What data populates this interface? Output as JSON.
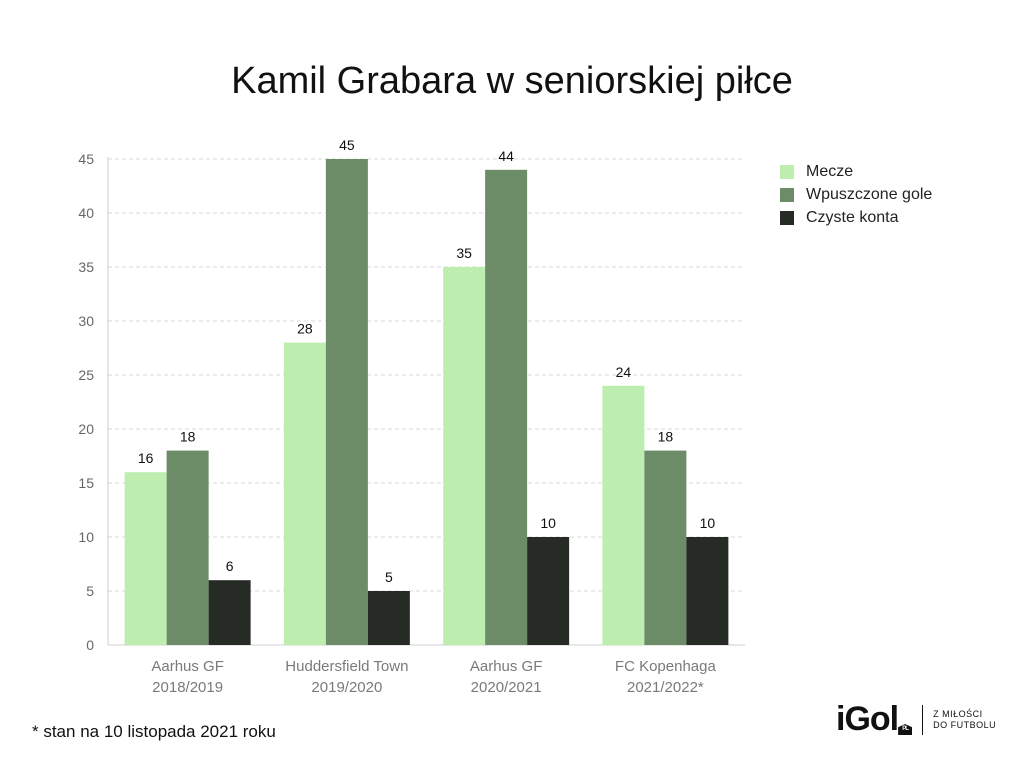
{
  "chart_data": {
    "type": "bar",
    "title": "Kamil Grabara w seniorskiej piłce",
    "categories": [
      [
        "Aarhus GF",
        "2018/2019"
      ],
      [
        "Huddersfield Town",
        "2019/2020"
      ],
      [
        "Aarhus GF",
        "2020/2021"
      ],
      [
        "FC Kopenhaga",
        "2021/2022*"
      ]
    ],
    "series": [
      {
        "name": "Mecze",
        "color": "#bdeeb0",
        "values": [
          16,
          28,
          35,
          24
        ]
      },
      {
        "name": "Wpuszczone gole",
        "color": "#6c8c68",
        "values": [
          18,
          45,
          44,
          18
        ]
      },
      {
        "name": "Czyste konta",
        "color": "#262b25",
        "values": [
          6,
          5,
          10,
          10
        ]
      }
    ],
    "ylim": [
      0,
      45
    ],
    "yticks": [
      0,
      5,
      10,
      15,
      20,
      25,
      30,
      35,
      40,
      45
    ],
    "grid": true,
    "legend": "right",
    "data_labels": true
  },
  "footnote": "* stan na 10 listopada 2021 roku",
  "logo": {
    "word": "iGol",
    "badge": "PL",
    "tagline_1": "Z MIŁOŚCI",
    "tagline_2": "DO FUTBOLU"
  }
}
